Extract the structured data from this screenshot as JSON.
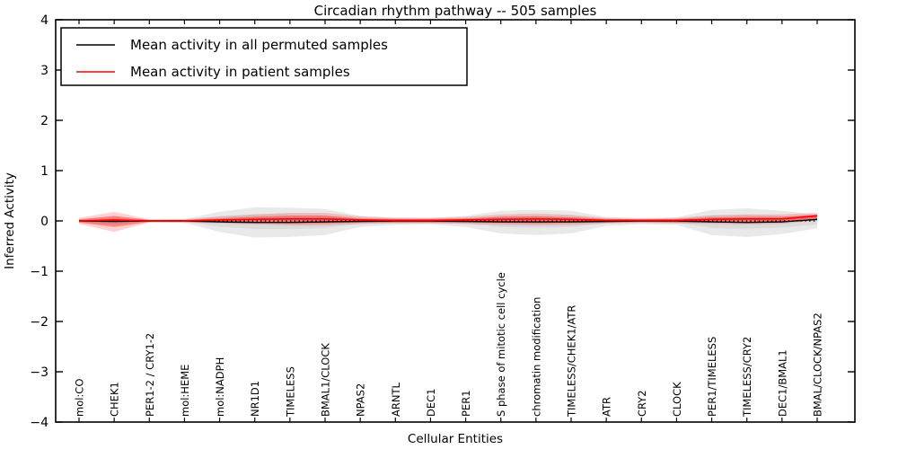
{
  "title": "Circadian rhythm pathway -- 505 samples",
  "xlabel": "Cellular Entities",
  "ylabel": "Inferred Activity",
  "legend": {
    "entries": [
      {
        "label": "Mean activity in all permuted samples",
        "color": "#000000"
      },
      {
        "label": "Mean activity in patient samples",
        "color": "#ff0000"
      }
    ]
  },
  "colors": {
    "permuted_band": "#aaaaaa",
    "patient_band": "#ff0000",
    "permuted_line": "#000000",
    "patient_line": "#ff0000",
    "zero_line": "#000000",
    "frame": "#000000"
  },
  "chart_data": {
    "type": "area",
    "title": "Circadian rhythm pathway -- 505 samples",
    "xlabel": "Cellular Entities",
    "ylabel": "Inferred Activity",
    "ylim": [
      -4,
      4
    ],
    "yticks": [
      4,
      3,
      2,
      1,
      0,
      -1,
      -2,
      -3,
      -4
    ],
    "ytick_labels": [
      "4",
      "3",
      "2",
      "1",
      "0",
      "−1",
      "−2",
      "−3",
      "−4"
    ],
    "grid": false,
    "legend_position": "upper left",
    "zero_line": {
      "y": 0,
      "style": "dotted",
      "color": "#000000"
    },
    "categories": [
      "mol:CO",
      "CHEK1",
      "PER1-2 / CRY1-2",
      "mol:HEME",
      "mol:NADPH",
      "NR1D1",
      "TIMELESS",
      "BMAL1/CLOCK",
      "NPAS2",
      "ARNTL",
      "DEC1",
      "PER1",
      "S phase of mitotic cell cycle",
      "chromatin modification",
      "TIMELESS/CHEK1/ATR",
      "ATR",
      "CRY2",
      "CLOCK",
      "PER1/TIMELESS",
      "TIMELESS/CRY2",
      "DEC1/BMAL1",
      "BMAL/CLOCK/NPAS2"
    ],
    "series": [
      {
        "name": "Permuted samples spread (outer band)",
        "kind": "band",
        "color": "#999999",
        "opacity": 0.22,
        "upper": [
          0.03,
          0.07,
          0.02,
          0.04,
          0.18,
          0.27,
          0.26,
          0.24,
          0.1,
          0.07,
          0.06,
          0.1,
          0.2,
          0.22,
          0.2,
          0.08,
          0.06,
          0.07,
          0.22,
          0.25,
          0.2,
          0.13
        ],
        "lower": [
          -0.03,
          -0.08,
          -0.02,
          -0.04,
          -0.22,
          -0.33,
          -0.32,
          -0.28,
          -0.12,
          -0.08,
          -0.07,
          -0.12,
          -0.25,
          -0.28,
          -0.25,
          -0.1,
          -0.07,
          -0.08,
          -0.28,
          -0.32,
          -0.26,
          -0.15
        ]
      },
      {
        "name": "Permuted samples spread (inner band)",
        "kind": "band",
        "color": "#999999",
        "opacity": 0.18,
        "upper": [
          0.015,
          0.035,
          0.01,
          0.02,
          0.09,
          0.13,
          0.13,
          0.12,
          0.05,
          0.035,
          0.03,
          0.05,
          0.1,
          0.11,
          0.1,
          0.04,
          0.03,
          0.035,
          0.11,
          0.12,
          0.1,
          0.07
        ],
        "lower": [
          -0.015,
          -0.04,
          -0.01,
          -0.02,
          -0.11,
          -0.16,
          -0.16,
          -0.14,
          -0.06,
          -0.04,
          -0.035,
          -0.06,
          -0.12,
          -0.14,
          -0.12,
          -0.05,
          -0.035,
          -0.04,
          -0.14,
          -0.16,
          -0.13,
          -0.07
        ]
      },
      {
        "name": "Patient samples spread (outer band)",
        "kind": "band",
        "color": "#ff0000",
        "opacity": 0.18,
        "upper": [
          0.06,
          0.18,
          0.03,
          0.03,
          0.09,
          0.13,
          0.16,
          0.16,
          0.09,
          0.06,
          0.06,
          0.08,
          0.13,
          0.15,
          0.12,
          0.06,
          0.05,
          0.06,
          0.11,
          0.13,
          0.13,
          0.16
        ],
        "lower": [
          -0.06,
          -0.22,
          -0.03,
          -0.03,
          -0.05,
          -0.07,
          -0.09,
          -0.09,
          -0.06,
          -0.05,
          -0.05,
          -0.06,
          -0.08,
          -0.09,
          -0.08,
          -0.05,
          -0.04,
          -0.05,
          -0.06,
          -0.07,
          -0.06,
          0.01
        ]
      },
      {
        "name": "Patient samples spread (inner band)",
        "kind": "band",
        "color": "#ff0000",
        "opacity": 0.35,
        "upper": [
          0.03,
          0.1,
          0.02,
          0.02,
          0.05,
          0.08,
          0.1,
          0.1,
          0.05,
          0.04,
          0.04,
          0.05,
          0.08,
          0.09,
          0.07,
          0.04,
          0.03,
          0.04,
          0.07,
          0.08,
          0.08,
          0.13
        ],
        "lower": [
          -0.03,
          -0.12,
          -0.02,
          -0.02,
          -0.03,
          -0.04,
          -0.05,
          -0.05,
          -0.03,
          -0.03,
          -0.03,
          -0.03,
          -0.04,
          -0.05,
          -0.04,
          -0.03,
          -0.02,
          -0.03,
          -0.03,
          -0.04,
          -0.03,
          0.04
        ]
      },
      {
        "name": "Mean activity in all permuted samples",
        "kind": "line",
        "color": "#000000",
        "width": 1.4,
        "values": [
          0.0,
          -0.01,
          0.0,
          0.0,
          -0.02,
          -0.03,
          -0.03,
          -0.02,
          -0.01,
          0.0,
          0.0,
          -0.01,
          -0.02,
          -0.02,
          -0.02,
          -0.01,
          0.0,
          0.0,
          -0.02,
          -0.03,
          -0.02,
          0.03
        ]
      },
      {
        "name": "Mean activity in patient samples",
        "kind": "line",
        "color": "#ff0000",
        "width": 1.6,
        "values": [
          0.0,
          0.02,
          0.0,
          0.0,
          0.02,
          0.03,
          0.04,
          0.04,
          0.02,
          0.01,
          0.01,
          0.02,
          0.03,
          0.04,
          0.03,
          0.01,
          0.01,
          0.01,
          0.03,
          0.04,
          0.04,
          0.1
        ]
      }
    ]
  },
  "layout_note": ""
}
